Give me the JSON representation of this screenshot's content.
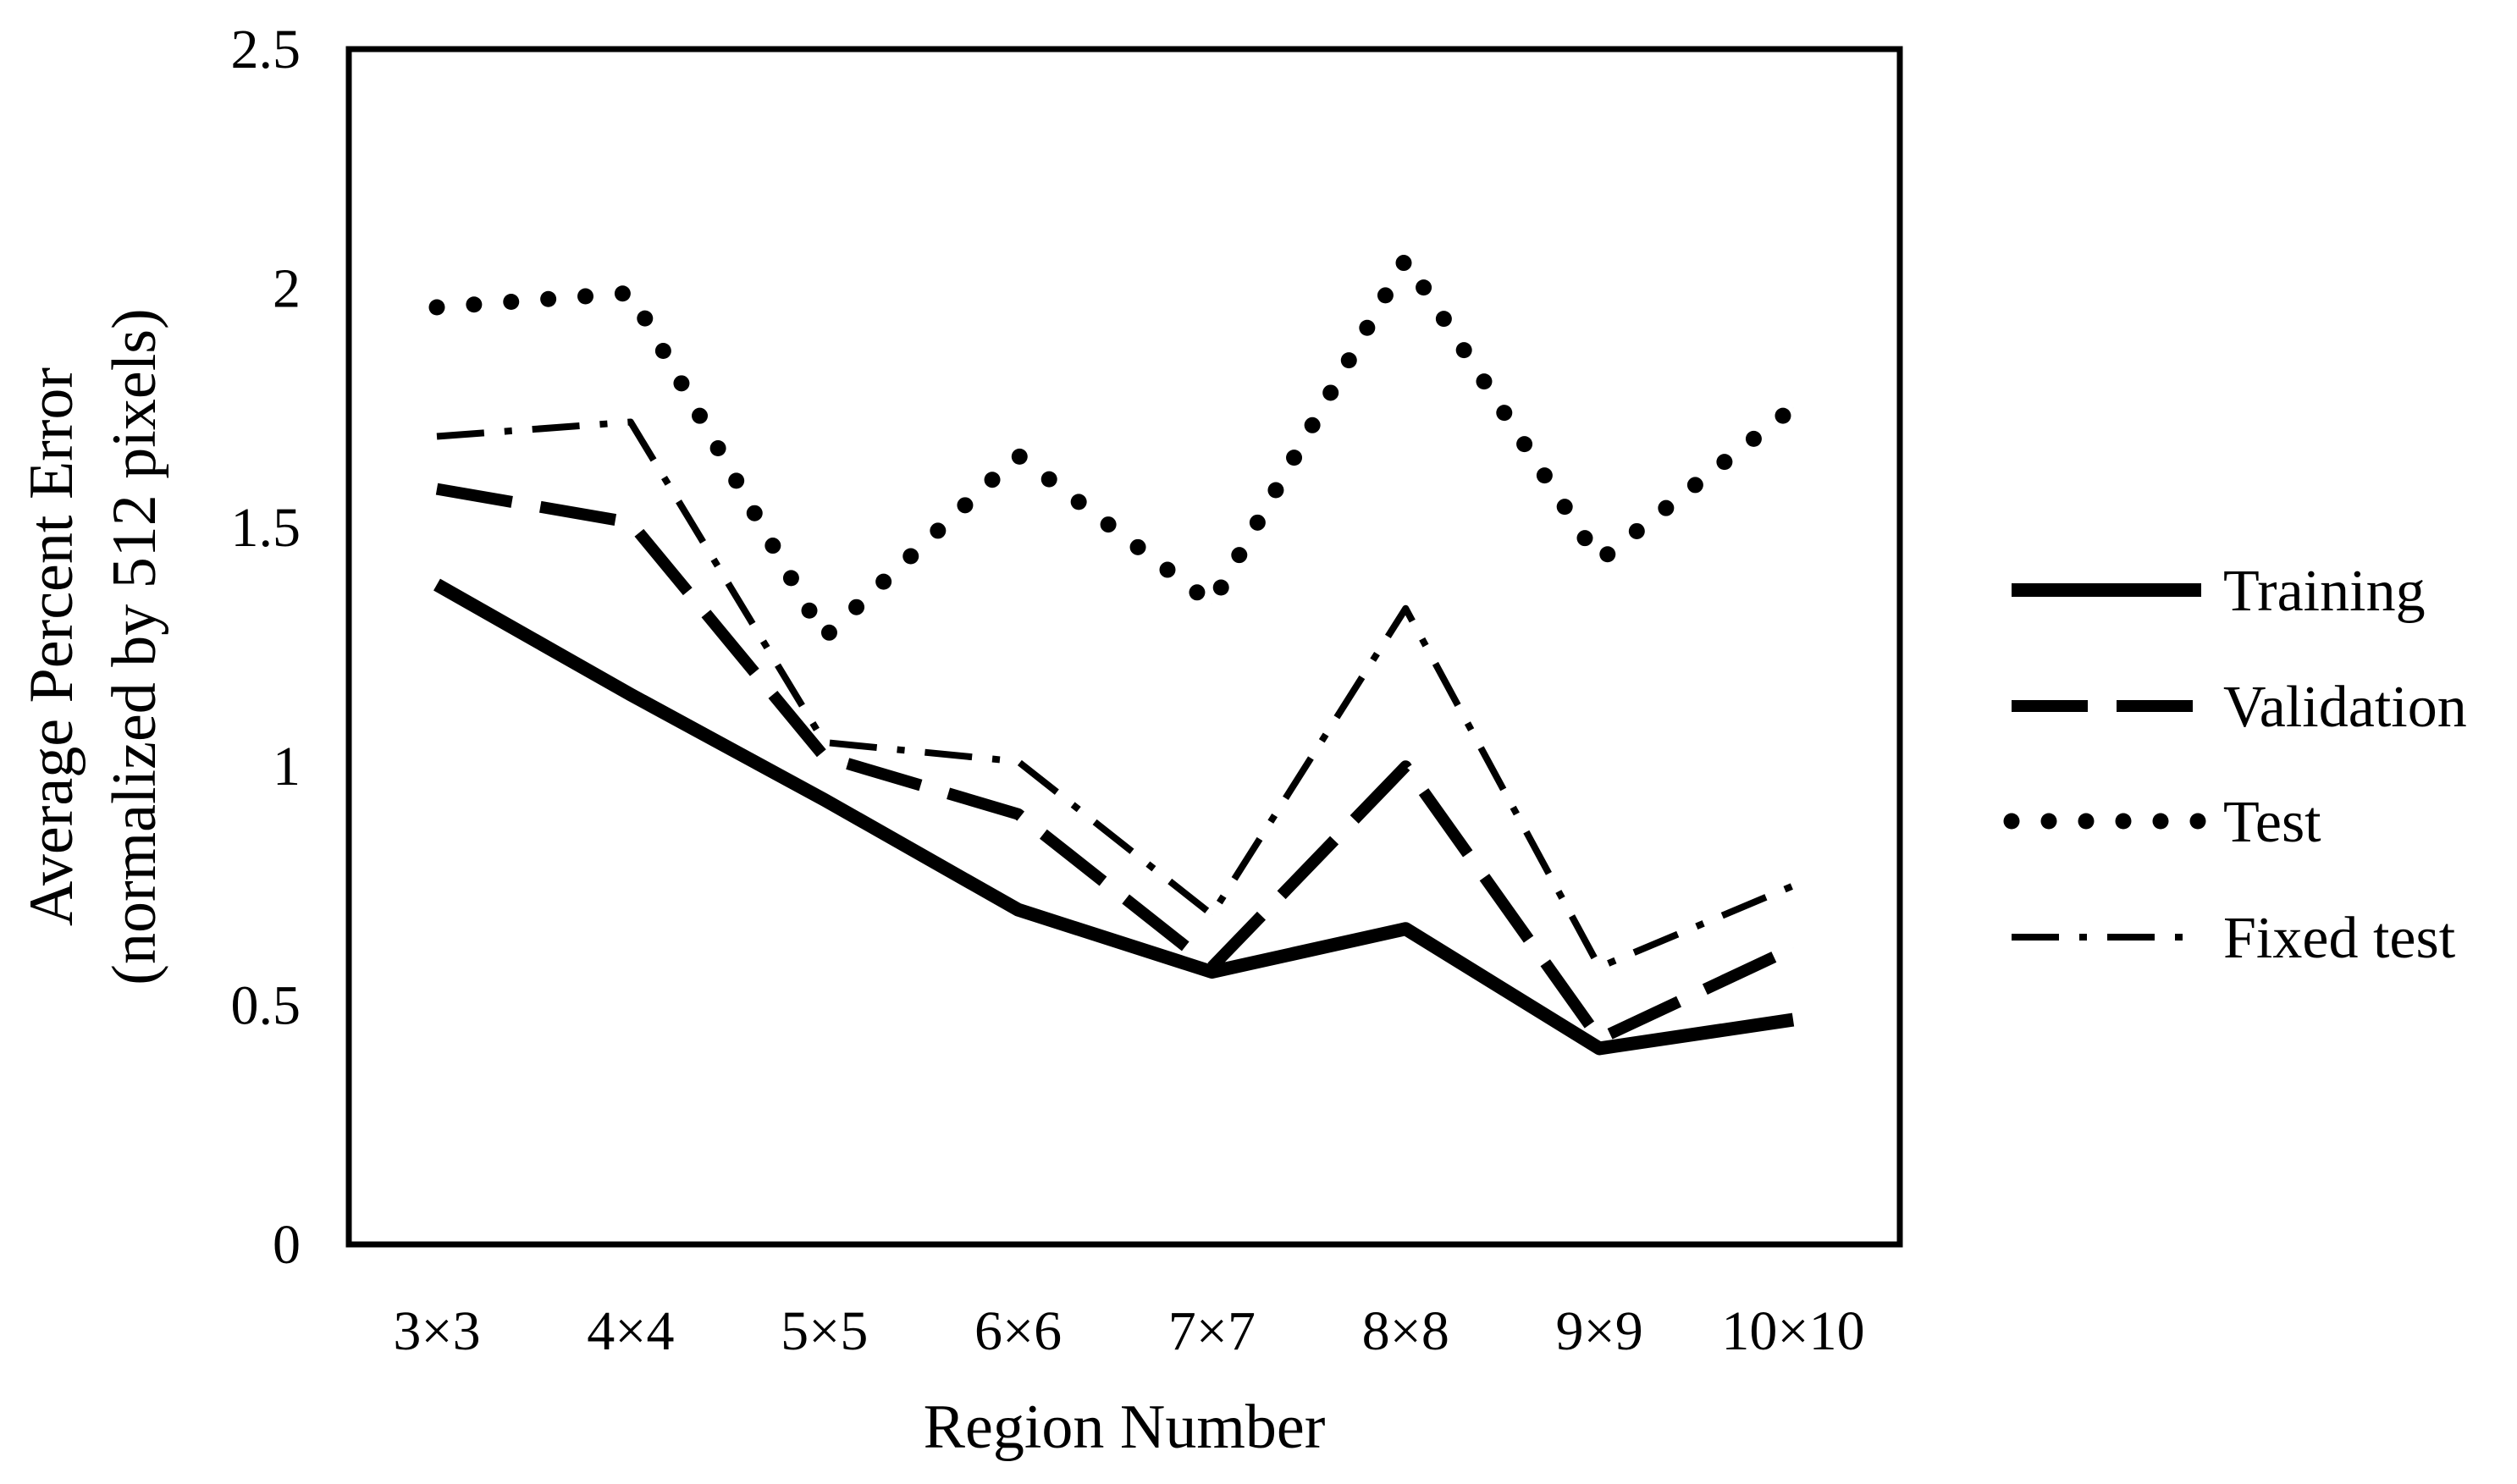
{
  "chart_data": {
    "type": "line",
    "title": "",
    "xlabel": "Region Number",
    "ylabel": [
      "Average  Percent Error",
      "(normalized by 512 pixels)"
    ],
    "categories": [
      "3×3",
      "4×4",
      "5×5",
      "6×6",
      "7×7",
      "8×8",
      "9×9",
      "10×10"
    ],
    "ylim": [
      0,
      2.5
    ],
    "yticks": [
      "0",
      "0.5",
      "1",
      "1.5",
      "2",
      "2.5"
    ],
    "grid": false,
    "legend_position": "right",
    "series": [
      {
        "name": "Training",
        "line_style": "solid",
        "color": "#000000",
        "values": [
          1.38,
          1.15,
          0.93,
          0.7,
          0.57,
          0.66,
          0.41,
          0.47
        ]
      },
      {
        "name": "Validation",
        "line_style": "long-dash",
        "color": "#000000",
        "values": [
          1.58,
          1.51,
          1.02,
          0.9,
          0.58,
          1.0,
          0.43,
          0.62
        ]
      },
      {
        "name": "Test",
        "line_style": "dotted",
        "color": "#000000",
        "values": [
          1.96,
          1.99,
          1.27,
          1.65,
          1.34,
          2.06,
          1.43,
          1.75
        ]
      },
      {
        "name": "Fixed test",
        "line_style": "dash-dot",
        "color": "#000000",
        "values": [
          1.69,
          1.72,
          1.05,
          1.01,
          0.69,
          1.33,
          0.58,
          0.75
        ]
      }
    ]
  }
}
